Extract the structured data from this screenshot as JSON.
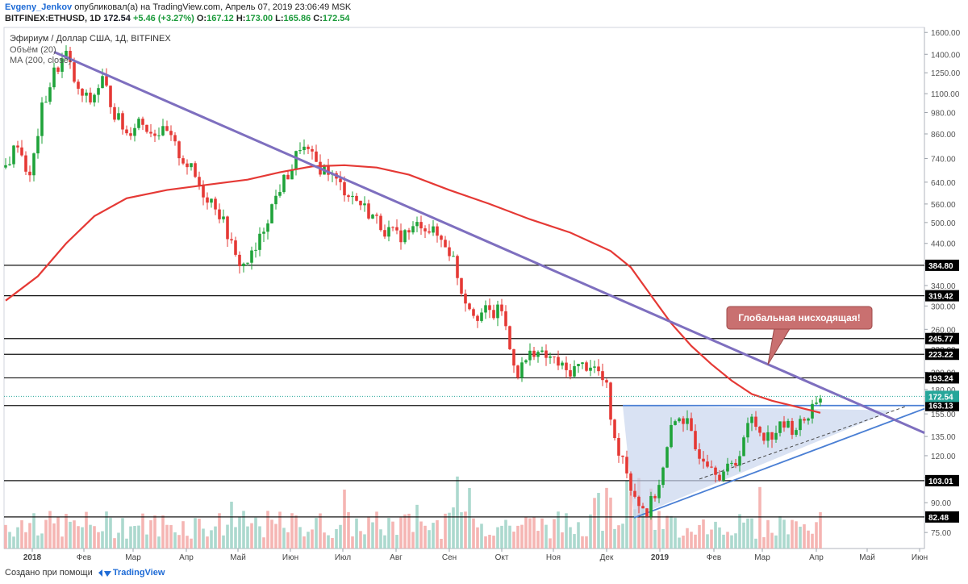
{
  "header": {
    "author": "Evgeny_Jenkov",
    "published_text": " опубликовал(а) на TradingView.com, Апрель 07, 2019 23:06:49 MSK",
    "symbol": "BITFINEX:ETHUSD, 1D",
    "last": "172.54",
    "change": "+5.46 (+3.27%)",
    "o_label": "O:",
    "o": "167.12",
    "h_label": "H:",
    "h": "173.00",
    "l_label": "L:",
    "l": "165.86",
    "c_label": "C:",
    "c": "172.54"
  },
  "legend": {
    "title": "Эфириум / Доллар США, 1Д, BITFINEX",
    "volume": "Объём (20)",
    "ma": "MA (200, close)"
  },
  "footer": {
    "created_with": "Создано при помощи",
    "brand": "TradingView"
  },
  "colors": {
    "up": "#26a69a",
    "down": "#ef5350",
    "up_candle": "#1fa33a",
    "down_candle": "#e53935",
    "ma": "#e53935",
    "trend": "#7e6fbf",
    "triangle": "#4a7fd4",
    "triangle_fill": "#c9d6ee",
    "annotation_fill": "#c97070"
  },
  "chart_data": {
    "type": "candlestick",
    "x_axis": {
      "labels": [
        "2018",
        "Фев",
        "Мар",
        "Апр",
        "Май",
        "Июн",
        "Июл",
        "Авг",
        "Сен",
        "Окт",
        "Ноя",
        "Дек",
        "2019",
        "Фев",
        "Мар",
        "Апр",
        "Май",
        "Июн"
      ]
    },
    "y_axis": {
      "scale": "log",
      "range": [
        68,
        1650
      ],
      "ticks": [
        "1600.00",
        "1400.00",
        "1250.00",
        "1100.00",
        "980.00",
        "860.00",
        "740.00",
        "640.00",
        "560.00",
        "500.00",
        "440.00",
        "390.00",
        "340.00",
        "300.00",
        "260.00",
        "230.00",
        "200.00",
        "180.00",
        "155.00",
        "135.00",
        "120.00",
        "105.00",
        "90.00",
        "75.00"
      ]
    },
    "horizontal_levels": [
      "384.80",
      "319.42",
      "245.77",
      "223.22",
      "193.24",
      "163.13",
      "103.01",
      "82.48"
    ],
    "last_price": "172.54",
    "price_path": [
      [
        0,
        700
      ],
      [
        3,
        820
      ],
      [
        6,
        650
      ],
      [
        9,
        1000
      ],
      [
        12,
        1250
      ],
      [
        15,
        1400
      ],
      [
        18,
        1100
      ],
      [
        21,
        1050
      ],
      [
        24,
        1200
      ],
      [
        27,
        980
      ],
      [
        30,
        860
      ],
      [
        33,
        940
      ],
      [
        36,
        880
      ],
      [
        40,
        860
      ],
      [
        43,
        760
      ],
      [
        46,
        690
      ],
      [
        49,
        600
      ],
      [
        52,
        560
      ],
      [
        55,
        470
      ],
      [
        57,
        400
      ],
      [
        59,
        385
      ],
      [
        62,
        420
      ],
      [
        65,
        520
      ],
      [
        68,
        620
      ],
      [
        71,
        700
      ],
      [
        73,
        800
      ],
      [
        75,
        760
      ],
      [
        78,
        700
      ],
      [
        80,
        690
      ],
      [
        82,
        640
      ],
      [
        85,
        600
      ],
      [
        88,
        560
      ],
      [
        91,
        520
      ],
      [
        94,
        480
      ],
      [
        97,
        460
      ],
      [
        100,
        470
      ],
      [
        103,
        500
      ],
      [
        106,
        470
      ],
      [
        109,
        440
      ],
      [
        111,
        400
      ],
      [
        113,
        330
      ],
      [
        115,
        300
      ],
      [
        117,
        285
      ],
      [
        119,
        290
      ],
      [
        121,
        285
      ],
      [
        123,
        295
      ],
      [
        125,
        230
      ],
      [
        127,
        200
      ],
      [
        129,
        215
      ],
      [
        131,
        230
      ],
      [
        133,
        220
      ],
      [
        135,
        218
      ],
      [
        137,
        210
      ],
      [
        139,
        200
      ],
      [
        141,
        205
      ],
      [
        143,
        208
      ],
      [
        145,
        210
      ],
      [
        147,
        200
      ],
      [
        149,
        180
      ],
      [
        151,
        130
      ],
      [
        153,
        120
      ],
      [
        155,
        100
      ],
      [
        157,
        90
      ],
      [
        159,
        85
      ],
      [
        161,
        95
      ],
      [
        163,
        110
      ],
      [
        165,
        140
      ],
      [
        167,
        155
      ],
      [
        169,
        145
      ],
      [
        171,
        125
      ],
      [
        173,
        120
      ],
      [
        175,
        115
      ],
      [
        177,
        108
      ],
      [
        179,
        110
      ],
      [
        181,
        115
      ],
      [
        183,
        135
      ],
      [
        185,
        150
      ],
      [
        187,
        140
      ],
      [
        189,
        135
      ],
      [
        191,
        140
      ],
      [
        193,
        145
      ],
      [
        195,
        142
      ],
      [
        197,
        145
      ],
      [
        199,
        155
      ],
      [
        201,
        170
      ],
      [
        202,
        172.54
      ]
    ],
    "ma200_path": [
      [
        0,
        310
      ],
      [
        8,
        360
      ],
      [
        15,
        440
      ],
      [
        22,
        520
      ],
      [
        30,
        580
      ],
      [
        40,
        610
      ],
      [
        50,
        630
      ],
      [
        60,
        650
      ],
      [
        68,
        680
      ],
      [
        76,
        705
      ],
      [
        84,
        710
      ],
      [
        92,
        700
      ],
      [
        100,
        670
      ],
      [
        110,
        610
      ],
      [
        120,
        560
      ],
      [
        130,
        510
      ],
      [
        140,
        470
      ],
      [
        150,
        420
      ],
      [
        155,
        380
      ],
      [
        160,
        320
      ],
      [
        165,
        270
      ],
      [
        170,
        235
      ],
      [
        175,
        210
      ],
      [
        180,
        190
      ],
      [
        185,
        175
      ],
      [
        190,
        168
      ],
      [
        195,
        163
      ],
      [
        200,
        158
      ],
      [
        202,
        156
      ]
    ],
    "annotation": "Глобальная нисходящая!"
  }
}
